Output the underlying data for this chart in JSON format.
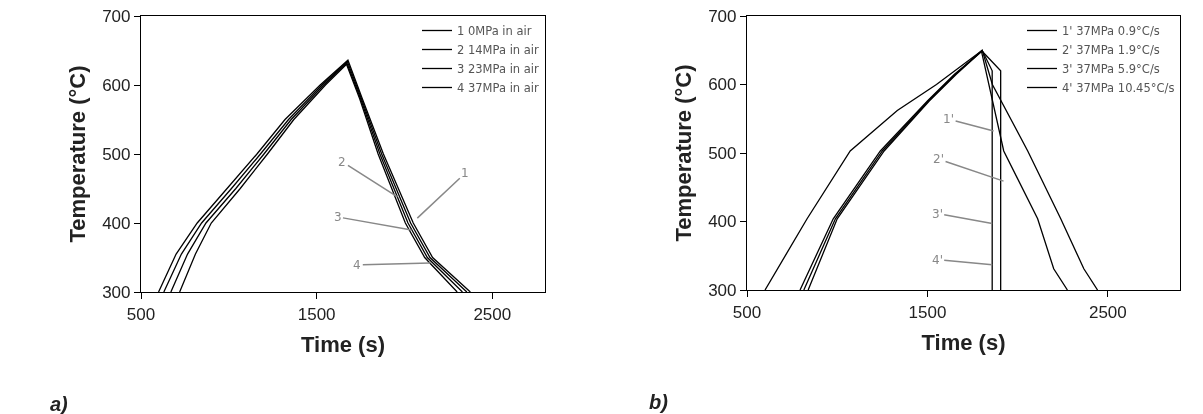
{
  "chart_data": [
    {
      "type": "line",
      "xlabel": "Time (s)",
      "ylabel": "Temperature (°C)",
      "xlim": [
        500,
        2800
      ],
      "ylim": [
        300,
        700
      ],
      "xticks": [
        500,
        1500,
        2500
      ],
      "yticks": [
        300,
        400,
        500,
        600,
        700
      ],
      "grid": false,
      "legend": "top right",
      "marker": "none",
      "line_style": "solid",
      "annotations": [
        "a)",
        {
          "text": "2",
          "x": 1960,
          "y": 438
        },
        {
          "text": "3",
          "x": 2040,
          "y": 390
        },
        {
          "text": "1",
          "x": 2073,
          "y": 407
        },
        {
          "text": "4",
          "x": 2147,
          "y": 342
        }
      ],
      "series": [
        {
          "name": "1 0MPa in air",
          "color": "#000000",
          "x": [
            600,
            700,
            820,
            990,
            1160,
            1320,
            1520,
            1678,
            1760,
            1880,
            2050,
            2160,
            2375
          ],
          "values": [
            300,
            355,
            400,
            450,
            500,
            550,
            600,
            636,
            580,
            500,
            400,
            350,
            300
          ]
        },
        {
          "name": "2 14MPa in air",
          "color": "#000000",
          "x": [
            630,
            730,
            845,
            1015,
            1180,
            1340,
            1530,
            1675,
            1755,
            1870,
            2035,
            2145,
            2355
          ],
          "values": [
            300,
            355,
            400,
            450,
            500,
            550,
            600,
            634,
            580,
            500,
            400,
            350,
            300
          ]
        },
        {
          "name": "3 23MPa in air",
          "color": "#000000",
          "x": [
            670,
            765,
            870,
            1040,
            1200,
            1355,
            1540,
            1672,
            1750,
            1860,
            2020,
            2130,
            2330
          ],
          "values": [
            300,
            355,
            400,
            450,
            500,
            550,
            600,
            632,
            580,
            500,
            400,
            350,
            300
          ]
        },
        {
          "name": "4 37MPa in air",
          "color": "#000000",
          "x": [
            720,
            810,
            900,
            1065,
            1220,
            1370,
            1550,
            1670,
            1745,
            1850,
            2005,
            2115,
            2300
          ],
          "values": [
            300,
            355,
            400,
            450,
            500,
            550,
            600,
            630,
            580,
            500,
            400,
            350,
            300
          ]
        }
      ]
    },
    {
      "type": "line",
      "xlabel": "Time (s)",
      "ylabel": "Temperature (°C)",
      "xlim": [
        500,
        2900
      ],
      "ylim": [
        300,
        700
      ],
      "xticks": [
        500,
        1500,
        2500
      ],
      "yticks": [
        300,
        400,
        500,
        600,
        700
      ],
      "grid": false,
      "legend": "top right",
      "marker": "none",
      "line_style": "solid",
      "annotations": [
        "b)",
        {
          "text": "1'",
          "x": 1867,
          "y": 532
        },
        {
          "text": "2'",
          "x": 1922,
          "y": 459
        },
        {
          "text": "3'",
          "x": 1859,
          "y": 397
        },
        {
          "text": "4'",
          "x": 1859,
          "y": 337
        }
      ],
      "series": [
        {
          "name": "1' 37MPa 0.9°C/s",
          "color": "#000000",
          "x": [
            600,
            833,
            1072,
            1333,
            1550,
            1804,
            1860,
            2056,
            2239,
            2367,
            2443
          ],
          "values": [
            300,
            404,
            503,
            562,
            600,
            650,
            600,
            503,
            404,
            331,
            300
          ]
        },
        {
          "name": "2' 37MPa 1.9°C/s",
          "color": "#000000",
          "x": [
            794,
            978,
            1239,
            1500,
            1650,
            1800,
            1923,
            2111,
            2200,
            2276
          ],
          "values": [
            300,
            404,
            503,
            576,
            615,
            648,
            503,
            404,
            331,
            300
          ]
        },
        {
          "name": "3' 37MPa 5.9°C/s",
          "color": "#000000",
          "x": [
            839,
            1000,
            1260,
            1510,
            1660,
            1802,
            1906,
            1906
          ],
          "values": [
            300,
            404,
            503,
            576,
            615,
            649,
            620,
            300
          ]
        },
        {
          "name": "4' 37MPa 10.45°C/s",
          "color": "#000000",
          "x": [
            815,
            990,
            1250,
            1505,
            1655,
            1803,
            1859,
            1859
          ],
          "values": [
            300,
            404,
            503,
            576,
            615,
            650,
            620,
            300
          ]
        }
      ]
    }
  ]
}
